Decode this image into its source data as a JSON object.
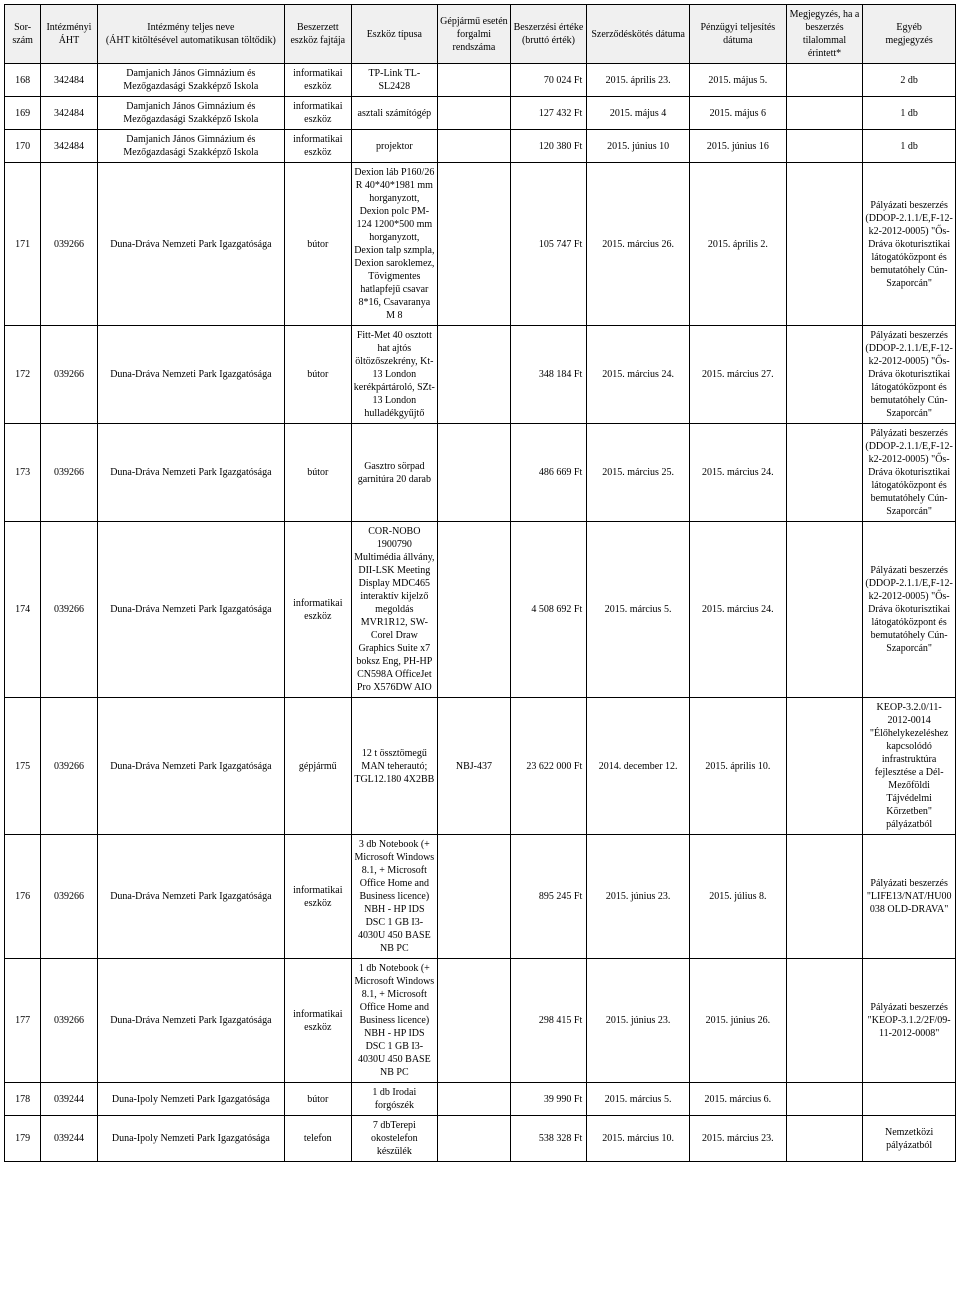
{
  "headers": {
    "sorszam": "Sor-\nszám",
    "aht": "Intézményi\nÁHT",
    "nev": "Intézmény teljes neve\n(ÁHT kitöltésével automatikusan töltődik)",
    "fajta": "Beszerzett\neszköz fajtája",
    "tipus": "Eszköz típusa",
    "rendszam": "Gépjármű esetén\nforgalmi\nrendszáma",
    "ertek": "Beszerzési értéke\n(bruttó érték)",
    "szerzodes": "Szerződéskötés dátuma",
    "penzugy": "Pénzügyi teljesítés\ndátuma",
    "megjegyzes": "Megjegyzés, ha a\nbeszerzés\ntilalommal\nérintett*",
    "egyeb": "Egyéb\nmegjegyzés"
  },
  "rows": [
    {
      "sorszam": "168",
      "aht": "342484",
      "nev": "Damjanich János Gimnázium és Mezőgazdasági Szakképző Iskola",
      "fajta": "informatikai eszköz",
      "tipus": "TP-Link TL-SL2428",
      "rendszam": "",
      "ertek": "70 024 Ft",
      "szerzodes": "2015. április 23.",
      "penzugy": "2015. május 5.",
      "megjegyzes": "",
      "egyeb": "2 db"
    },
    {
      "sorszam": "169",
      "aht": "342484",
      "nev": "Damjanich János Gimnázium és Mezőgazdasági Szakképző Iskola",
      "fajta": "informatikai eszköz",
      "tipus": "asztali számítógép",
      "rendszam": "",
      "ertek": "127 432 Ft",
      "szerzodes": "2015. május 4",
      "penzugy": "2015. május 6",
      "megjegyzes": "",
      "egyeb": "1 db"
    },
    {
      "sorszam": "170",
      "aht": "342484",
      "nev": "Damjanich János Gimnázium és Mezőgazdasági Szakképző Iskola",
      "fajta": "informatikai eszköz",
      "tipus": "projektor",
      "rendszam": "",
      "ertek": "120 380 Ft",
      "szerzodes": "2015. június 10",
      "penzugy": "2015. június 16",
      "megjegyzes": "",
      "egyeb": "1 db"
    },
    {
      "sorszam": "171",
      "aht": "039266",
      "nev": "Duna-Dráva Nemzeti Park Igazgatósága",
      "fajta": "bútor",
      "tipus": "Dexion láb P160/26 R 40*40*1981 mm horganyzott, Dexion polc PM-124 1200*500 mm horganyzott, Dexion talp szmpla, Dexion saroklemez, Tövigmentes hatlapfejű csavar 8*16, Csavaranya M 8",
      "rendszam": "",
      "ertek": "105 747 Ft",
      "szerzodes": "2015. március 26.",
      "penzugy": "2015. április 2.",
      "megjegyzes": "",
      "egyeb": "Pályázati beszerzés (DDOP-2.1.1/E,F-12-k2-2012-0005) \"Ős-Dráva ökoturisztikai látogatóközpont és bemutatóhely Cún-Szaporcán\""
    },
    {
      "sorszam": "172",
      "aht": "039266",
      "nev": "Duna-Dráva Nemzeti Park Igazgatósága",
      "fajta": "bútor",
      "tipus": "Fitt-Met 40 osztott hat ajtós öltözőszekrény, Kt-13 London kerékpártároló, SZt-13 London hulladékgyűjtő",
      "rendszam": "",
      "ertek": "348 184 Ft",
      "szerzodes": "2015. március 24.",
      "penzugy": "2015. március 27.",
      "megjegyzes": "",
      "egyeb": "Pályázati beszerzés (DDOP-2.1.1/E,F-12-k2-2012-0005) \"Ős-Dráva ökoturisztikai látogatóközpont és bemutatóhely Cún-Szaporcán\""
    },
    {
      "sorszam": "173",
      "aht": "039266",
      "nev": "Duna-Dráva Nemzeti Park Igazgatósága",
      "fajta": "bútor",
      "tipus": "Gasztro sörpad garnitúra 20 darab",
      "rendszam": "",
      "ertek": "486 669 Ft",
      "szerzodes": "2015. március 25.",
      "penzugy": "2015. március 24.",
      "megjegyzes": "",
      "egyeb": "Pályázati beszerzés (DDOP-2.1.1/E,F-12-k2-2012-0005) \"Ős-Dráva ökoturisztikai látogatóközpont és bemutatóhely Cún-Szaporcán\""
    },
    {
      "sorszam": "174",
      "aht": "039266",
      "nev": "Duna-Dráva Nemzeti Park Igazgatósága",
      "fajta": "informatikai eszköz",
      "tipus": "COR-NOBO 1900790 Multimédia állvány, DII-LSK Meeting Display MDC465 interaktív kijelző megoldás MVR1R12, SW-Corel Draw Graphics Suite x7 boksz Eng, PH-HP CN598A OfficeJet Pro X576DW AIO",
      "rendszam": "",
      "ertek": "4 508 692 Ft",
      "szerzodes": "2015. március 5.",
      "penzugy": "2015. március 24.",
      "megjegyzes": "",
      "egyeb": "Pályázati beszerzés (DDOP-2.1.1/E,F-12-k2-2012-0005) \"Ős-Dráva ökoturisztikai látogatóközpont és bemutatóhely Cún-Szaporcán\""
    },
    {
      "sorszam": "175",
      "aht": "039266",
      "nev": "Duna-Dráva Nemzeti Park Igazgatósága",
      "fajta": "gépjármű",
      "tipus": "12 t össztömegű MAN teherautó; TGL12.180 4X2BB",
      "rendszam": "NBJ-437",
      "ertek": "23 622 000 Ft",
      "szerzodes": "2014. december 12.",
      "penzugy": "2015. április 10.",
      "megjegyzes": "",
      "egyeb": "KEOP-3.2.0/11-2012-0014 \"Élőhelykezeléshez kapcsolódó infrastruktúra fejlesztése a Dél-Mezőföldi Tájvédelmi Körzetben\" pályázatból"
    },
    {
      "sorszam": "176",
      "aht": "039266",
      "nev": "Duna-Dráva Nemzeti Park Igazgatósága",
      "fajta": "informatikai eszköz",
      "tipus": "3 db Notebook (+ Microsoft Windows 8.1, + Microsoft Office Home and Business licence) NBH - HP IDS DSC 1 GB I3-4030U 450 BASE NB PC",
      "rendszam": "",
      "ertek": "895 245 Ft",
      "szerzodes": "2015. június 23.",
      "penzugy": "2015. július 8.",
      "megjegyzes": "",
      "egyeb": "Pályázati beszerzés \"LIFE13/NAT/HU00038 OLD-DRAVA\""
    },
    {
      "sorszam": "177",
      "aht": "039266",
      "nev": "Duna-Dráva Nemzeti Park Igazgatósága",
      "fajta": "informatikai eszköz",
      "tipus": "1 db Notebook (+ Microsoft Windows 8.1, + Microsoft Office Home and Business licence) NBH - HP IDS DSC 1 GB I3-4030U 450 BASE NB PC",
      "rendszam": "",
      "ertek": "298 415 Ft",
      "szerzodes": "2015. június 23.",
      "penzugy": "2015. június 26.",
      "megjegyzes": "",
      "egyeb": "Pályázati beszerzés \"KEOP-3.1.2/2F/09-11-2012-0008\""
    },
    {
      "sorszam": "178",
      "aht": "039244",
      "nev": "Duna-Ipoly Nemzeti Park Igazgatósága",
      "fajta": "bútor",
      "tipus": "1 db Irodai forgószék",
      "rendszam": "",
      "ertek": "39 990 Ft",
      "szerzodes": "2015. március 5.",
      "penzugy": "2015. március 6.",
      "megjegyzes": "",
      "egyeb": ""
    },
    {
      "sorszam": "179",
      "aht": "039244",
      "nev": "Duna-Ipoly Nemzeti Park Igazgatósága",
      "fajta": "telefon",
      "tipus": "7 dbTerepi okostelefon készülék",
      "rendszam": "",
      "ertek": "538 328 Ft",
      "szerzodes": "2015. március 10.",
      "penzugy": "2015. március 23.",
      "megjegyzes": "",
      "egyeb": "Nemzetközi pályázatból"
    }
  ]
}
